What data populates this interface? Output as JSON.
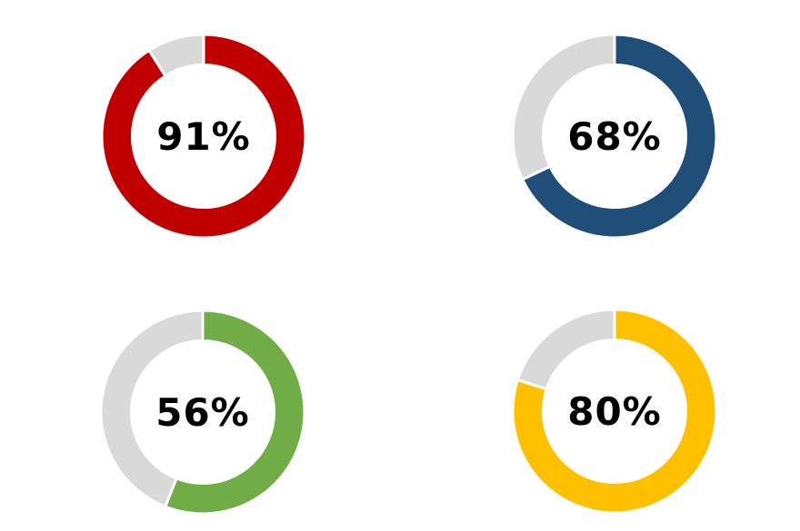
{
  "page": {
    "background_color": "#FFFFFF"
  },
  "chart_data": {
    "type": "donut",
    "layout": "2x2-grid",
    "start_angle_deg": 0,
    "direction": "clockwise",
    "remainder_color": "#D9D9D9",
    "segment_border_color": "#FFFFFF",
    "label_color": "#000000",
    "outer_radius": 112,
    "inner_radius": 78.5,
    "charts": [
      {
        "position": "top-left",
        "label": "91%",
        "value": 91,
        "remainder": 9,
        "color": "#C00000"
      },
      {
        "position": "top-right",
        "label": "68%",
        "value": 68,
        "remainder": 32,
        "color": "#1F4E79"
      },
      {
        "position": "bottom-left",
        "label": "56%",
        "value": 56,
        "remainder": 44,
        "color": "#70AD47"
      },
      {
        "position": "bottom-right",
        "label": "80%",
        "value": 80,
        "remainder": 20,
        "color": "#FFC000"
      }
    ]
  }
}
